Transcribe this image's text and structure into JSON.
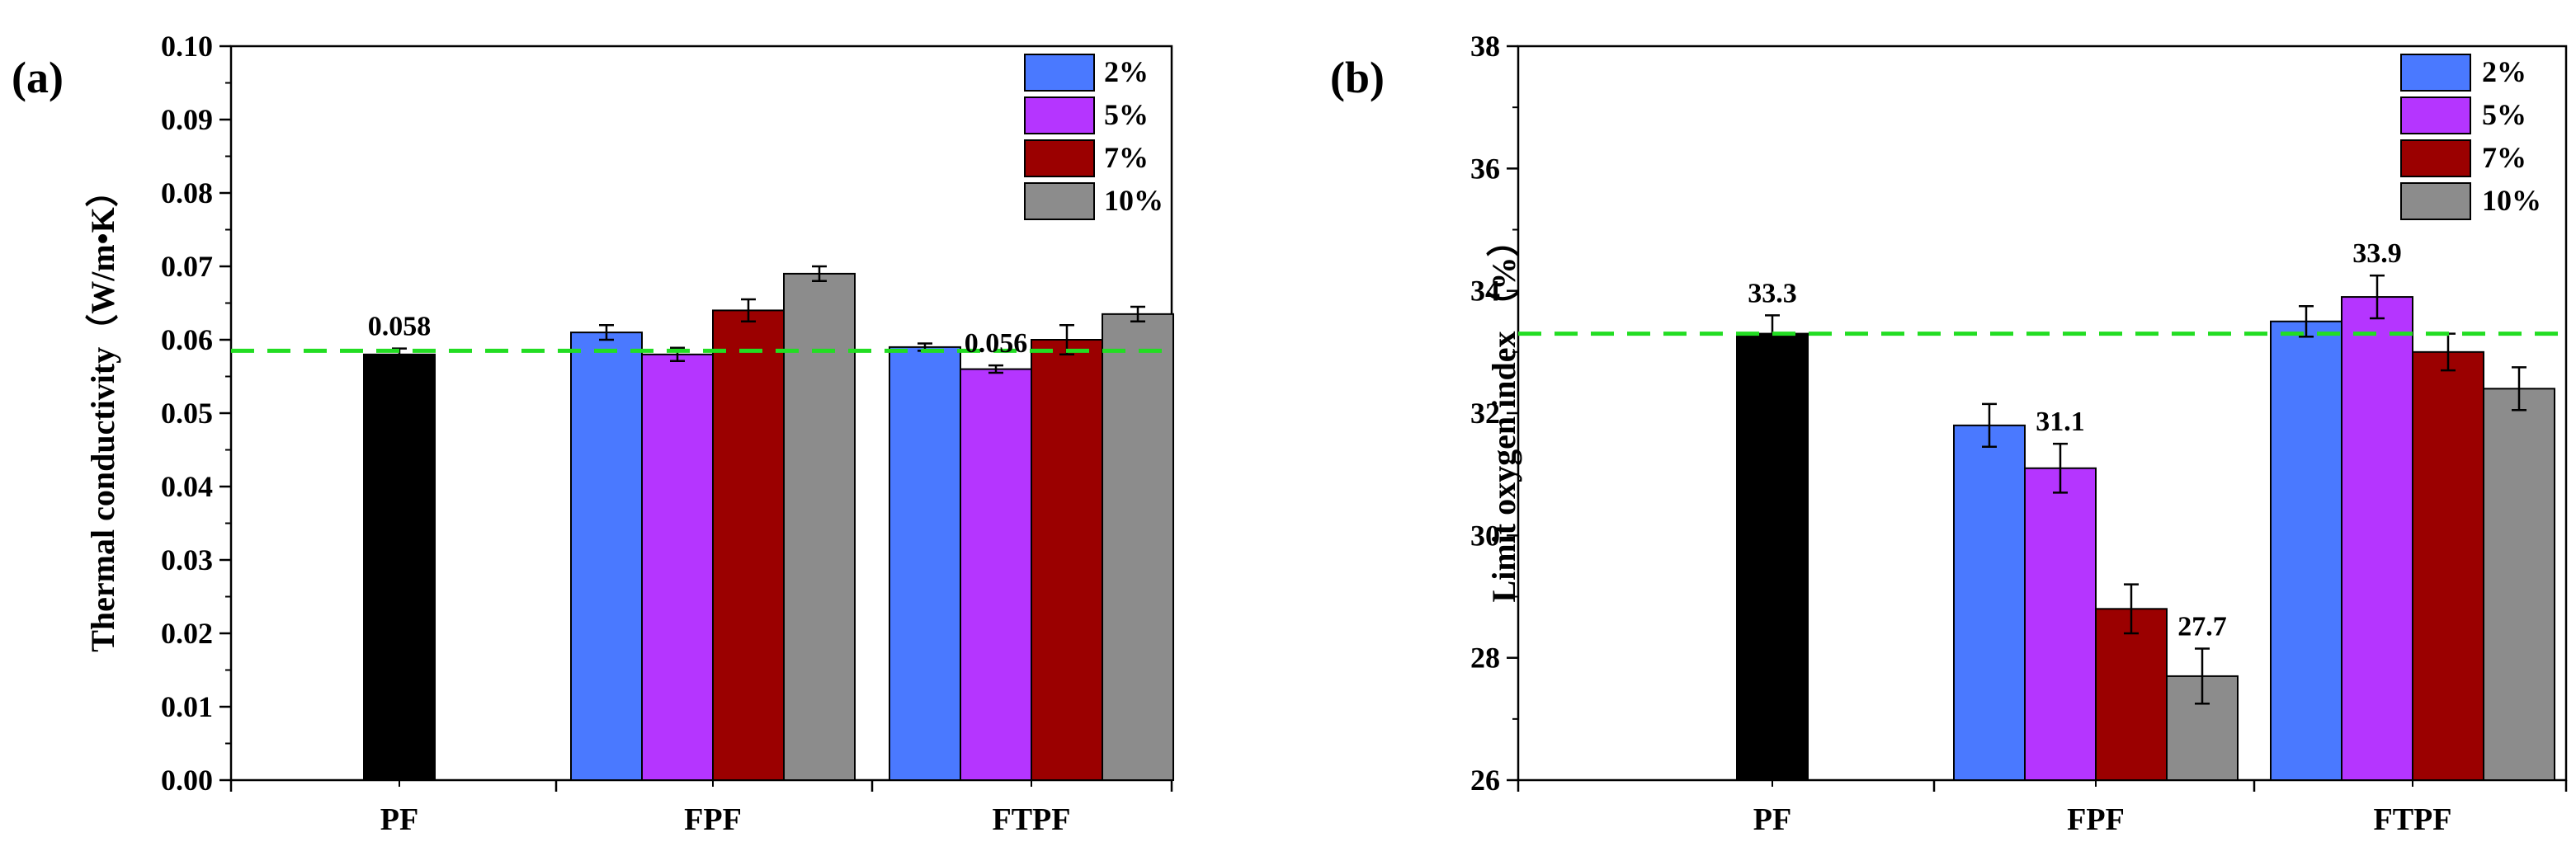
{
  "chart_data": [
    {
      "type": "bar",
      "panel_label": "(a)",
      "title": "",
      "xlabel": "",
      "ylabel": "Thermal conductivity（W/m•K）",
      "ylim": [
        0,
        0.1
      ],
      "yticks": [
        0.0,
        0.01,
        0.02,
        0.03,
        0.04,
        0.05,
        0.06,
        0.07,
        0.08,
        0.09,
        0.1
      ],
      "ytick_decimals": 2,
      "grid": false,
      "legend_position": "top-right",
      "categories": [
        "PF",
        "FPF",
        "FTPF"
      ],
      "baseline": {
        "value": 0.0585,
        "color": "#22dd22",
        "style": "dashed"
      },
      "bars": [
        {
          "category": "PF",
          "series": "PF",
          "value": 0.058,
          "error": 0.0008,
          "color": "#000000",
          "label": "0.058"
        },
        {
          "category": "FPF",
          "series": "2%",
          "value": 0.061,
          "error": 0.001,
          "color": "#4a79ff"
        },
        {
          "category": "FPF",
          "series": "5%",
          "value": 0.058,
          "error": 0.0009,
          "color": "#b535ff"
        },
        {
          "category": "FPF",
          "series": "7%",
          "value": 0.064,
          "error": 0.0015,
          "color": "#9b0000"
        },
        {
          "category": "FPF",
          "series": "10%",
          "value": 0.069,
          "error": 0.001,
          "color": "#8c8c8c"
        },
        {
          "category": "FTPF",
          "series": "2%",
          "value": 0.059,
          "error": 0.0005,
          "color": "#4a79ff"
        },
        {
          "category": "FTPF",
          "series": "5%",
          "value": 0.056,
          "error": 0.0005,
          "color": "#b535ff",
          "label": "0.056"
        },
        {
          "category": "FTPF",
          "series": "7%",
          "value": 0.06,
          "error": 0.002,
          "color": "#9b0000"
        },
        {
          "category": "FTPF",
          "series": "10%",
          "value": 0.0635,
          "error": 0.001,
          "color": "#8c8c8c"
        }
      ],
      "legend": [
        {
          "name": "2%",
          "color": "#4a79ff"
        },
        {
          "name": "5%",
          "color": "#b535ff"
        },
        {
          "name": "7%",
          "color": "#9b0000"
        },
        {
          "name": "10%",
          "color": "#8c8c8c"
        }
      ]
    },
    {
      "type": "bar",
      "panel_label": "(b)",
      "title": "",
      "xlabel": "",
      "ylabel": "Limit oxygen index （%）",
      "ylim": [
        26,
        38
      ],
      "yticks": [
        26,
        28,
        30,
        32,
        34,
        36,
        38
      ],
      "ytick_decimals": 0,
      "grid": false,
      "legend_position": "top-right",
      "categories": [
        "PF",
        "FPF",
        "FTPF"
      ],
      "baseline": {
        "value": 33.3,
        "color": "#22dd22",
        "style": "dashed"
      },
      "bars": [
        {
          "category": "PF",
          "series": "PF",
          "value": 33.3,
          "error": 0.3,
          "color": "#000000",
          "label": "33.3"
        },
        {
          "category": "FPF",
          "series": "2%",
          "value": 31.8,
          "error": 0.35,
          "color": "#4a79ff"
        },
        {
          "category": "FPF",
          "series": "5%",
          "value": 31.1,
          "error": 0.4,
          "color": "#b535ff",
          "label": "31.1"
        },
        {
          "category": "FPF",
          "series": "7%",
          "value": 28.8,
          "error": 0.4,
          "color": "#9b0000"
        },
        {
          "category": "FPF",
          "series": "10%",
          "value": 27.7,
          "error": 0.45,
          "color": "#8c8c8c",
          "label": "27.7"
        },
        {
          "category": "FTPF",
          "series": "2%",
          "value": 33.5,
          "error": 0.25,
          "color": "#4a79ff"
        },
        {
          "category": "FTPF",
          "series": "5%",
          "value": 33.9,
          "error": 0.35,
          "color": "#b535ff",
          "label": "33.9"
        },
        {
          "category": "FTPF",
          "series": "7%",
          "value": 33.0,
          "error": 0.3,
          "color": "#9b0000"
        },
        {
          "category": "FTPF",
          "series": "10%",
          "value": 32.4,
          "error": 0.35,
          "color": "#8c8c8c"
        }
      ],
      "legend": [
        {
          "name": "2%",
          "color": "#4a79ff"
        },
        {
          "name": "5%",
          "color": "#b535ff"
        },
        {
          "name": "7%",
          "color": "#9b0000"
        },
        {
          "name": "10%",
          "color": "#8c8c8c"
        }
      ]
    }
  ]
}
